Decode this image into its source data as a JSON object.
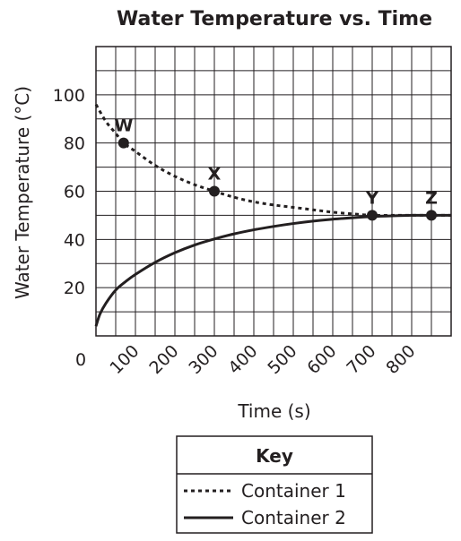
{
  "chart_data": {
    "type": "line",
    "title": "Water Temperature vs. Time",
    "xlabel": "Time (s)",
    "ylabel": "Water Temperature (°C)",
    "xlim": [
      0,
      900
    ],
    "ylim": [
      0,
      120
    ],
    "x_ticks": [
      100,
      200,
      300,
      400,
      500,
      600,
      700,
      800
    ],
    "y_ticks": [
      20,
      40,
      60,
      80,
      100
    ],
    "origin_label": "0",
    "grid": true,
    "series": [
      {
        "name": "Container 1",
        "style": "dotted",
        "x": [
          0,
          25,
          50,
          70,
          100,
          150,
          200,
          250,
          300,
          350,
          400,
          450,
          500,
          550,
          600,
          650,
          700,
          750,
          800,
          850,
          900
        ],
        "y": [
          96,
          89,
          84,
          80,
          76.5,
          70.7,
          66.2,
          62.7,
          60,
          57.5,
          55.6,
          54.3,
          53.3,
          52.3,
          51.3,
          50.6,
          50,
          50,
          50,
          50,
          50
        ]
      },
      {
        "name": "Container 2",
        "style": "solid",
        "x": [
          0,
          10,
          25,
          50,
          75,
          100,
          150,
          200,
          250,
          300,
          350,
          400,
          450,
          500,
          550,
          600,
          650,
          700,
          750,
          800,
          850,
          900
        ],
        "y": [
          4,
          9,
          13.5,
          19,
          22.5,
          25.5,
          30.5,
          34.5,
          37.7,
          40.2,
          42.3,
          44,
          45.4,
          46.6,
          47.6,
          48.4,
          49,
          49.5,
          49.8,
          50,
          50,
          50
        ]
      }
    ],
    "points": [
      {
        "label": "W",
        "x": 70,
        "y": 80
      },
      {
        "label": "X",
        "x": 300,
        "y": 60
      },
      {
        "label": "Y",
        "x": 700,
        "y": 50
      },
      {
        "label": "Z",
        "x": 850,
        "y": 50
      }
    ],
    "key": {
      "title": "Key",
      "entries": [
        {
          "label": "Container 1",
          "style": "dotted"
        },
        {
          "label": "Container 2",
          "style": "solid"
        }
      ]
    }
  }
}
